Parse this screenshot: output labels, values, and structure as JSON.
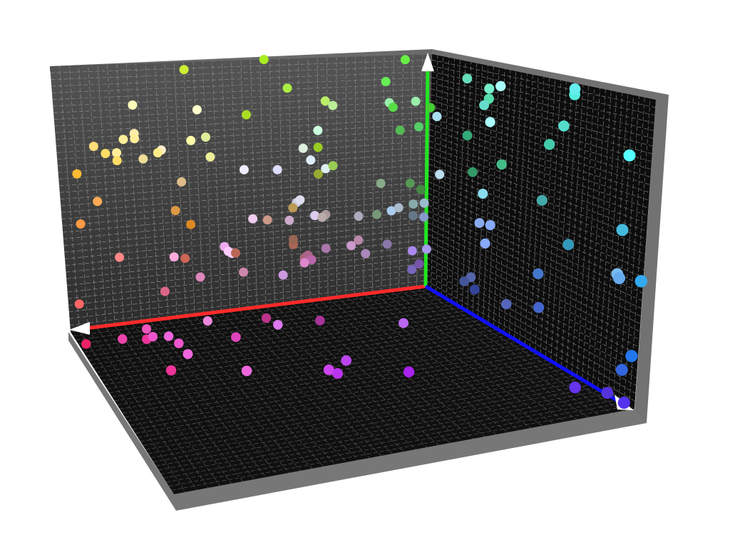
{
  "chart_data": {
    "type": "scatter",
    "title": "",
    "xlabel": "",
    "ylabel": "",
    "zlabel": "",
    "grid": true,
    "axis_colors": {
      "x": "#ff2a2a",
      "y": "#22e622",
      "z": "#1010ff"
    },
    "wall_color": "#3a3a3a",
    "floor_color": "#111111",
    "frame_color": "#6e6e6e",
    "points": [
      {
        "x": 0.56,
        "y": 1.0,
        "z": 0.0,
        "color": "#aaee22"
      },
      {
        "x": 0.93,
        "y": 0.98,
        "z": 0.0,
        "color": "#66ee44"
      },
      {
        "x": 0.35,
        "y": 0.97,
        "z": 0.0,
        "color": "#ccee33"
      },
      {
        "x": 0.62,
        "y": 0.88,
        "z": 0.0,
        "color": "#aaee44"
      },
      {
        "x": 0.88,
        "y": 0.89,
        "z": 0.0,
        "color": "#66ee55"
      },
      {
        "x": 0.72,
        "y": 0.82,
        "z": 0.0,
        "color": "#bbee66"
      },
      {
        "x": 0.74,
        "y": 0.8,
        "z": 0.0,
        "color": "#bbee99"
      },
      {
        "x": 0.51,
        "y": 0.78,
        "z": 0.0,
        "color": "#aadd22"
      },
      {
        "x": 0.89,
        "y": 0.8,
        "z": 0.0,
        "color": "#99eeaa"
      },
      {
        "x": 0.96,
        "y": 0.8,
        "z": 0.0,
        "color": "#99eeaa"
      },
      {
        "x": 0.9,
        "y": 0.78,
        "z": 0.0,
        "color": "#55dd44"
      },
      {
        "x": 1.0,
        "y": 0.77,
        "z": 0.0,
        "color": "#44cc33"
      },
      {
        "x": 0.21,
        "y": 0.84,
        "z": 0.0,
        "color": "#ffffbb"
      },
      {
        "x": 0.38,
        "y": 0.81,
        "z": 0.0,
        "color": "#ffffcc"
      },
      {
        "x": 0.21,
        "y": 0.73,
        "z": 0.0,
        "color": "#ffeeaa"
      },
      {
        "x": 0.18,
        "y": 0.71,
        "z": 0.0,
        "color": "#ffee99"
      },
      {
        "x": 0.21,
        "y": 0.71,
        "z": 0.0,
        "color": "#ffee99"
      },
      {
        "x": 0.4,
        "y": 0.7,
        "z": 0.0,
        "color": "#ddee99"
      },
      {
        "x": 0.36,
        "y": 0.69,
        "z": 0.0,
        "color": "#ffffaa"
      },
      {
        "x": 0.1,
        "y": 0.69,
        "z": 0.0,
        "color": "#ffdd77"
      },
      {
        "x": 0.13,
        "y": 0.66,
        "z": 0.0,
        "color": "#ffdd66"
      },
      {
        "x": 0.16,
        "y": 0.66,
        "z": 0.0,
        "color": "#ffee99"
      },
      {
        "x": 0.28,
        "y": 0.66,
        "z": 0.0,
        "color": "#ffeecc"
      },
      {
        "x": 0.27,
        "y": 0.65,
        "z": 0.0,
        "color": "#ffee88"
      },
      {
        "x": 0.16,
        "y": 0.63,
        "z": 0.0,
        "color": "#ffdd66"
      },
      {
        "x": 0.23,
        "y": 0.63,
        "z": 0.0,
        "color": "#eedd99"
      },
      {
        "x": 0.41,
        "y": 0.62,
        "z": 0.0,
        "color": "#eeee99"
      },
      {
        "x": 0.7,
        "y": 0.7,
        "z": 0.0,
        "color": "#ccffdd"
      },
      {
        "x": 0.66,
        "y": 0.63,
        "z": 0.0,
        "color": "#ddeedd"
      },
      {
        "x": 0.7,
        "y": 0.63,
        "z": 0.0,
        "color": "#99cc22"
      },
      {
        "x": 0.92,
        "y": 0.68,
        "z": 0.0,
        "color": "#55bb55"
      },
      {
        "x": 0.97,
        "y": 0.69,
        "z": 0.0,
        "color": "#55cc66"
      },
      {
        "x": 0.05,
        "y": 0.59,
        "z": 0.0,
        "color": "#ffbb33"
      },
      {
        "x": 0.5,
        "y": 0.56,
        "z": 0.0,
        "color": "#eeeeff"
      },
      {
        "x": 0.59,
        "y": 0.55,
        "z": 0.0,
        "color": "#ddddff"
      },
      {
        "x": 0.68,
        "y": 0.58,
        "z": 0.0,
        "color": "#ddeeff"
      },
      {
        "x": 0.7,
        "y": 0.52,
        "z": 0.0,
        "color": "#99aa33"
      },
      {
        "x": 0.72,
        "y": 0.54,
        "z": 0.0,
        "color": "#ddeeee"
      },
      {
        "x": 0.74,
        "y": 0.55,
        "z": 0.0,
        "color": "#99cc55"
      },
      {
        "x": 0.33,
        "y": 0.53,
        "z": 0.0,
        "color": "#ddbb88"
      },
      {
        "x": 0.1,
        "y": 0.48,
        "z": 0.0,
        "color": "#ffaa55"
      },
      {
        "x": 0.87,
        "y": 0.46,
        "z": 0.0,
        "color": "#88aa88"
      },
      {
        "x": 0.95,
        "y": 0.45,
        "z": 0.0,
        "color": "#559955"
      },
      {
        "x": 0.31,
        "y": 0.42,
        "z": 0.0,
        "color": "#dd9944"
      },
      {
        "x": 0.64,
        "y": 0.41,
        "z": 0.0,
        "color": "#ccccdd"
      },
      {
        "x": 0.65,
        "y": 0.42,
        "z": 0.0,
        "color": "#ddddee"
      },
      {
        "x": 0.63,
        "y": 0.39,
        "z": 0.0,
        "color": "#bb9955"
      },
      {
        "x": 0.98,
        "y": 0.42,
        "z": 0.0,
        "color": "#448844"
      },
      {
        "x": 0.05,
        "y": 0.4,
        "z": 0.0,
        "color": "#ff9944"
      },
      {
        "x": 0.35,
        "y": 0.36,
        "z": 0.0,
        "color": "#dd8822"
      },
      {
        "x": 0.52,
        "y": 0.36,
        "z": 0.0,
        "color": "#eeccee"
      },
      {
        "x": 0.56,
        "y": 0.35,
        "z": 0.0,
        "color": "#cc9988"
      },
      {
        "x": 0.62,
        "y": 0.34,
        "z": 0.0,
        "color": "#ccaacc"
      },
      {
        "x": 0.69,
        "y": 0.35,
        "z": 0.0,
        "color": "#ddccee"
      },
      {
        "x": 0.72,
        "y": 0.35,
        "z": 0.0,
        "color": "#aa9999"
      },
      {
        "x": 0.71,
        "y": 0.34,
        "z": 0.0,
        "color": "#bbaaaa"
      },
      {
        "x": 0.81,
        "y": 0.33,
        "z": 0.0,
        "color": "#aaaabb"
      },
      {
        "x": 0.86,
        "y": 0.33,
        "z": 0.0,
        "color": "#779977"
      },
      {
        "x": 0.9,
        "y": 0.34,
        "z": 0.0,
        "color": "#aaccee"
      },
      {
        "x": 0.92,
        "y": 0.35,
        "z": 0.0,
        "color": "#aabbcc"
      },
      {
        "x": 0.96,
        "y": 0.36,
        "z": 0.0,
        "color": "#88aaaa"
      },
      {
        "x": 0.96,
        "y": 0.31,
        "z": 0.0,
        "color": "#667788"
      },
      {
        "x": 0.99,
        "y": 0.36,
        "z": 0.0,
        "color": "#99bbcc"
      },
      {
        "x": 0.99,
        "y": 0.3,
        "z": 0.0,
        "color": "#8899cc"
      },
      {
        "x": 0.15,
        "y": 0.26,
        "z": 0.0,
        "color": "#ff8888"
      },
      {
        "x": 0.3,
        "y": 0.24,
        "z": 0.0,
        "color": "#ffaadd"
      },
      {
        "x": 0.33,
        "y": 0.23,
        "z": 0.0,
        "color": "#cc6655"
      },
      {
        "x": 0.44,
        "y": 0.26,
        "z": 0.0,
        "color": "#eeaaee"
      },
      {
        "x": 0.45,
        "y": 0.24,
        "z": 0.0,
        "color": "#ffccff"
      },
      {
        "x": 0.46,
        "y": 0.23,
        "z": 0.0,
        "color": "#ffccff"
      },
      {
        "x": 0.47,
        "y": 0.23,
        "z": 0.0,
        "color": "#bb6655"
      },
      {
        "x": 0.63,
        "y": 0.24,
        "z": 0.0,
        "color": "#aa6655"
      },
      {
        "x": 0.63,
        "y": 0.26,
        "z": 0.0,
        "color": "#996655"
      },
      {
        "x": 0.03,
        "y": 0.1,
        "z": 0.0,
        "color": "#ff6666"
      },
      {
        "x": 0.27,
        "y": 0.11,
        "z": 0.0,
        "color": "#dd6688"
      },
      {
        "x": 0.37,
        "y": 0.15,
        "z": 0.0,
        "color": "#dd88bb"
      },
      {
        "x": 0.49,
        "y": 0.15,
        "z": 0.0,
        "color": "#cc88aa"
      },
      {
        "x": 0.66,
        "y": 0.18,
        "z": 0.0,
        "color": "#aa6677"
      },
      {
        "x": 0.67,
        "y": 0.19,
        "z": 0.0,
        "color": "#aa6688"
      },
      {
        "x": 0.68,
        "y": 0.17,
        "z": 0.0,
        "color": "#bb66aa"
      },
      {
        "x": 0.96,
        "y": 0.08,
        "z": 0.0,
        "color": "#7766bb"
      },
      {
        "x": 0.83,
        "y": 0.17,
        "z": 0.0,
        "color": "#aa88bb"
      },
      {
        "x": 0.6,
        "y": 0.12,
        "z": 0.0,
        "color": "#cc99dd"
      },
      {
        "x": 0.66,
        "y": 0.16,
        "z": 0.0,
        "color": "#dd88cc"
      },
      {
        "x": 0.72,
        "y": 0.21,
        "z": 0.0,
        "color": "#aa77aa"
      },
      {
        "x": 0.79,
        "y": 0.21,
        "z": 0.0,
        "color": "#cc99cc"
      },
      {
        "x": 0.81,
        "y": 0.23,
        "z": 0.0,
        "color": "#bb88aa"
      },
      {
        "x": 0.89,
        "y": 0.2,
        "z": 0.0,
        "color": "#8877aa"
      },
      {
        "x": 0.96,
        "y": 0.16,
        "z": 0.0,
        "color": "#aa88ee"
      },
      {
        "x": 1.0,
        "y": 0.16,
        "z": 0.0,
        "color": "#aa99ee"
      },
      {
        "x": 0.98,
        "y": 0.1,
        "z": 0.0,
        "color": "#7755aa"
      },
      {
        "x": 1.0,
        "y": 0.5,
        "z": 0.05,
        "color": "#bbddee"
      },
      {
        "x": 1.0,
        "y": 0.74,
        "z": 0.03,
        "color": "#aaddee"
      },
      {
        "x": 1.0,
        "y": 0.93,
        "z": 0.16,
        "color": "#66ddbb"
      },
      {
        "x": 1.0,
        "y": 0.91,
        "z": 0.26,
        "color": "#77eecc"
      },
      {
        "x": 1.0,
        "y": 0.93,
        "z": 0.31,
        "color": "#aaffff"
      },
      {
        "x": 1.0,
        "y": 0.87,
        "z": 0.26,
        "color": "#55ddaa"
      },
      {
        "x": 1.0,
        "y": 0.84,
        "z": 0.24,
        "color": "#66ddcc"
      },
      {
        "x": 1.0,
        "y": 0.78,
        "z": 0.27,
        "color": "#aaffff"
      },
      {
        "x": 1.0,
        "y": 0.7,
        "z": 0.17,
        "color": "#33aa77"
      },
      {
        "x": 1.0,
        "y": 0.63,
        "z": 0.33,
        "color": "#44bb88"
      },
      {
        "x": 1.0,
        "y": 0.56,
        "z": 0.2,
        "color": "#339966"
      },
      {
        "x": 1.0,
        "y": 0.49,
        "z": 0.25,
        "color": "#88ddee"
      },
      {
        "x": 1.0,
        "y": 0.96,
        "z": 0.64,
        "color": "#55eedd"
      },
      {
        "x": 1.0,
        "y": 0.98,
        "z": 0.64,
        "color": "#66eeee"
      },
      {
        "x": 1.0,
        "y": 0.84,
        "z": 0.6,
        "color": "#55ddcc"
      },
      {
        "x": 1.0,
        "y": 0.8,
        "z": 0.9,
        "color": "#55ffff"
      },
      {
        "x": 1.0,
        "y": 0.76,
        "z": 0.54,
        "color": "#44ccaa"
      },
      {
        "x": 1.0,
        "y": 0.55,
        "z": 0.52,
        "color": "#44aaaa"
      },
      {
        "x": 1.0,
        "y": 0.55,
        "z": 0.89,
        "color": "#44bbdd"
      },
      {
        "x": 1.0,
        "y": 0.43,
        "z": 0.65,
        "color": "#3399bb"
      },
      {
        "x": 1.0,
        "y": 0.4,
        "z": 0.88,
        "color": "#77bbee"
      },
      {
        "x": 1.0,
        "y": 0.39,
        "z": 0.89,
        "color": "#66aaee"
      },
      {
        "x": 1.0,
        "y": 0.41,
        "z": 0.99,
        "color": "#33aaee"
      },
      {
        "x": 1.0,
        "y": 0.37,
        "z": 0.24,
        "color": "#88aaee"
      },
      {
        "x": 1.0,
        "y": 0.38,
        "z": 0.29,
        "color": "#88aaff"
      },
      {
        "x": 1.0,
        "y": 0.3,
        "z": 0.27,
        "color": "#88aaff"
      },
      {
        "x": 1.0,
        "y": 0.28,
        "z": 0.52,
        "color": "#4477cc"
      },
      {
        "x": 1.0,
        "y": 0.14,
        "z": 0.21,
        "color": "#5566aa"
      },
      {
        "x": 1.0,
        "y": 0.11,
        "z": 0.18,
        "color": "#445599"
      },
      {
        "x": 1.0,
        "y": 0.1,
        "z": 0.23,
        "color": "#334499"
      },
      {
        "x": 1.0,
        "y": 0.11,
        "z": 0.38,
        "color": "#5566bb"
      },
      {
        "x": 1.0,
        "y": 0.16,
        "z": 0.53,
        "color": "#4466cc"
      },
      {
        "x": 1.0,
        "y": 0.16,
        "z": 0.97,
        "color": "#2277ee"
      },
      {
        "x": 1.0,
        "y": 0.1,
        "z": 0.93,
        "color": "#3366dd"
      },
      {
        "x": 0.02,
        "y": 0.0,
        "z": 0.08,
        "color": "#ee2266"
      },
      {
        "x": 0.12,
        "y": 0.0,
        "z": 0.08,
        "color": "#ee44aa"
      },
      {
        "x": 0.18,
        "y": 0.0,
        "z": 0.1,
        "color": "#ee3399"
      },
      {
        "x": 0.2,
        "y": 0.0,
        "z": 0.04,
        "color": "#ee55bb"
      },
      {
        "x": 0.2,
        "y": 0.0,
        "z": 0.09,
        "color": "#ee55cc"
      },
      {
        "x": 0.25,
        "y": 0.0,
        "z": 0.15,
        "color": "#ee55cc"
      },
      {
        "x": 0.24,
        "y": 0.0,
        "z": 0.1,
        "color": "#ee66dd"
      },
      {
        "x": 0.25,
        "y": 0.0,
        "z": 0.22,
        "color": "#ee66dd"
      },
      {
        "x": 0.37,
        "y": 0.0,
        "z": 0.04,
        "color": "#ee88dd"
      },
      {
        "x": 0.4,
        "y": 0.0,
        "z": 0.16,
        "color": "#dd44bb"
      },
      {
        "x": 0.52,
        "y": 0.0,
        "z": 0.07,
        "color": "#bb3388"
      },
      {
        "x": 0.53,
        "y": 0.0,
        "z": 0.12,
        "color": "#dd77ee"
      },
      {
        "x": 0.64,
        "y": 0.0,
        "z": 0.13,
        "color": "#aa3399"
      },
      {
        "x": 0.82,
        "y": 0.0,
        "z": 0.22,
        "color": "#bb66ee"
      },
      {
        "x": 0.18,
        "y": 0.0,
        "z": 0.3,
        "color": "#ee3399"
      },
      {
        "x": 0.35,
        "y": 0.0,
        "z": 0.37,
        "color": "#ee66dd"
      },
      {
        "x": 0.53,
        "y": 0.0,
        "z": 0.44,
        "color": "#cc44ee"
      },
      {
        "x": 0.54,
        "y": 0.0,
        "z": 0.47,
        "color": "#bb33ee"
      },
      {
        "x": 0.59,
        "y": 0.0,
        "z": 0.4,
        "color": "#bb44ee"
      },
      {
        "x": 0.69,
        "y": 0.0,
        "z": 0.53,
        "color": "#aa22ee"
      },
      {
        "x": 0.96,
        "y": 0.0,
        "z": 0.8,
        "color": "#6633ee"
      },
      {
        "x": 1.0,
        "y": 0.0,
        "z": 0.95,
        "color": "#5533ee"
      },
      {
        "x": 1.0,
        "y": 0.0,
        "z": 0.87,
        "color": "#5533dd"
      }
    ]
  }
}
